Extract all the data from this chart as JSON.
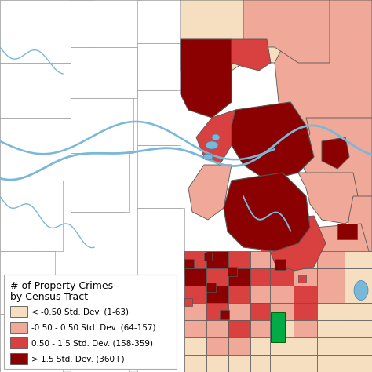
{
  "legend_colors": [
    "#f5dfc0",
    "#f0a898",
    "#d94040",
    "#8b0000"
  ],
  "legend_labels": [
    "< -0.50 Std. Dev. (1-63)",
    "-0.50 - 0.50 Std. Dev. (64-157)",
    "0.50 - 1.5 Std. Dev. (158-359)",
    "> 1.5 Std. Dev. (360+)"
  ],
  "title_line1": "# of Property Crimes",
  "title_line2": "by Census Tract",
  "background_color": "#ffffff",
  "outer_bg": "#ffffff",
  "left_area_color": "#ffffff",
  "border_color": "#555555",
  "river_color": "#7ab8d8",
  "green_color": "#00aa44",
  "figsize": [
    4.74,
    4.74
  ],
  "dpi": 100,
  "title_fontsize": 9,
  "legend_fontsize": 7.5
}
